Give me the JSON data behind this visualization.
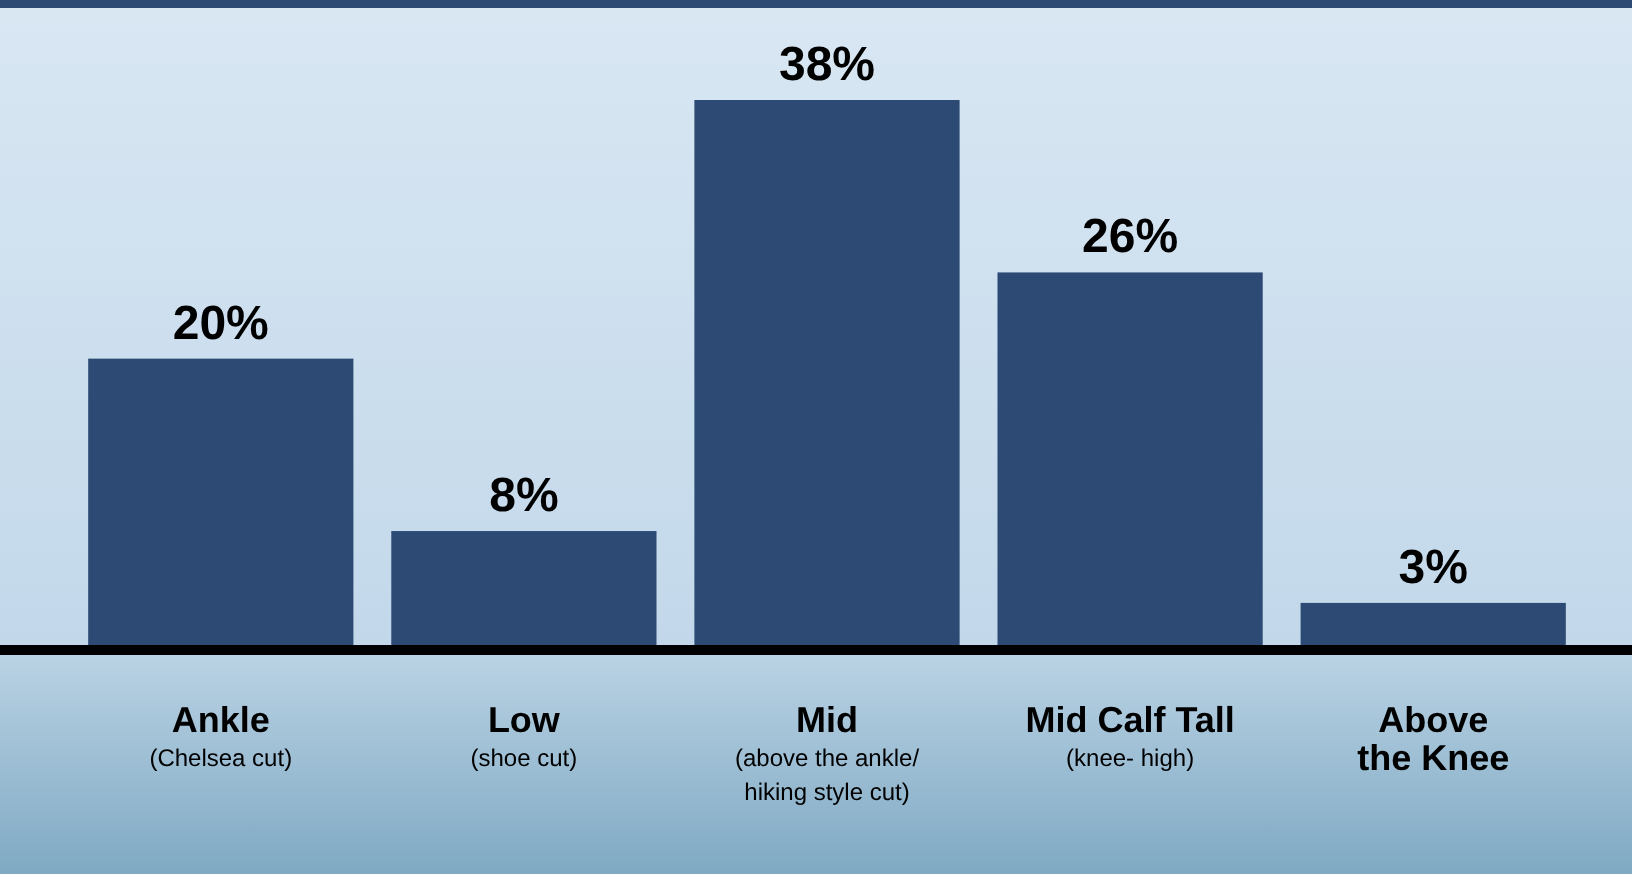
{
  "chart_data": {
    "type": "bar",
    "categories": [
      "Ankle\n(Chelsea cut)",
      "Low\n(shoe cut)",
      "Mid\n(above the ankle/\nhiking style cut)",
      "Mid Calf Tall\n(knee- high)",
      "Above\nthe Knee"
    ],
    "values": [
      20,
      8,
      38,
      26,
      3
    ],
    "value_labels": [
      "20%",
      "8%",
      "38%",
      "26%",
      "3%"
    ],
    "color": "#2c4a73"
  }
}
